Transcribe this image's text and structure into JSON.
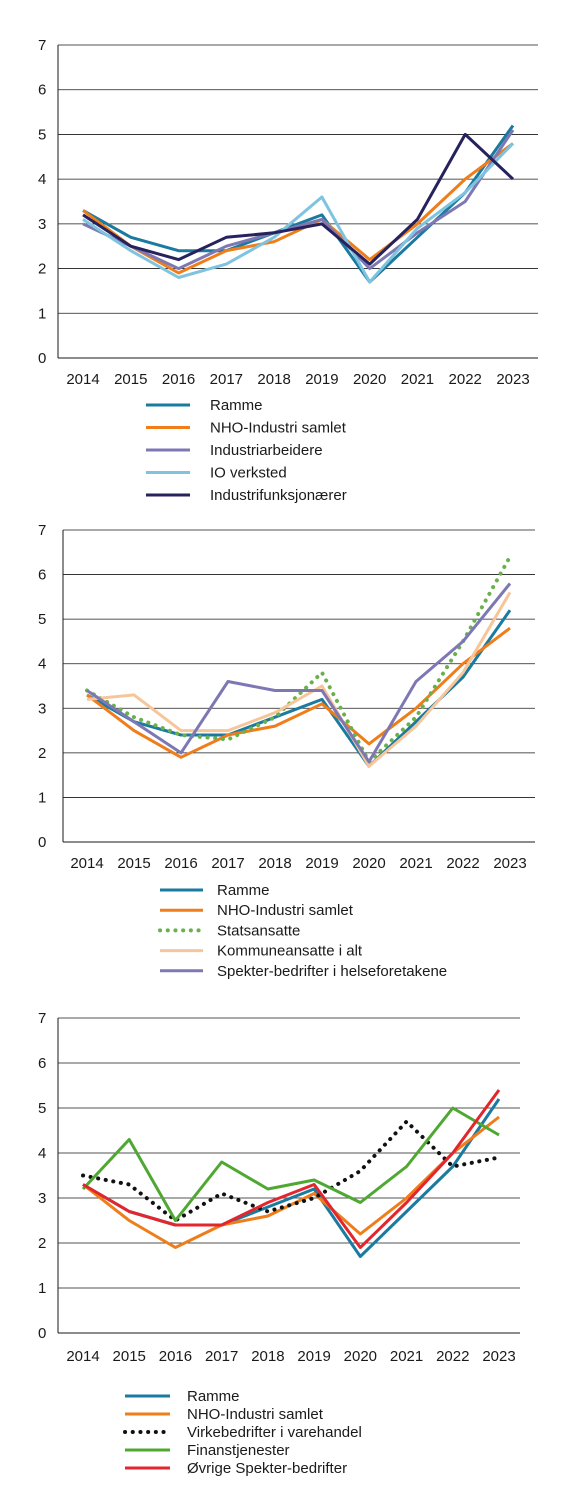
{
  "chart_data": [
    {
      "type": "line",
      "x": [
        "2014",
        "2015",
        "2016",
        "2017",
        "2018",
        "2019",
        "2020",
        "2021",
        "2022",
        "2023"
      ],
      "ylim": [
        0,
        7
      ],
      "yticks": [
        "0",
        "1",
        "2",
        "3",
        "4",
        "5",
        "6",
        "7"
      ],
      "grid": true,
      "legend_position": "bottom",
      "series": [
        {
          "name": "Ramme",
          "color": "#1a7aa0",
          "dash": "solid",
          "values": [
            3.3,
            2.7,
            2.4,
            2.4,
            2.8,
            3.2,
            1.7,
            2.7,
            3.7,
            5.2
          ]
        },
        {
          "name": "NHO-Industri samlet",
          "color": "#ef7d1a",
          "dash": "solid",
          "values": [
            3.3,
            2.5,
            1.9,
            2.4,
            2.6,
            3.1,
            2.2,
            3.0,
            4.0,
            4.8
          ]
        },
        {
          "name": "Industriarbeidere",
          "color": "#7d78b4",
          "dash": "solid",
          "values": [
            3.0,
            2.5,
            2.0,
            2.5,
            2.8,
            3.1,
            2.0,
            2.8,
            3.5,
            5.1
          ]
        },
        {
          "name": "IO verksted",
          "color": "#7ec3e0",
          "dash": "solid",
          "values": [
            3.1,
            2.4,
            1.8,
            2.1,
            2.7,
            3.6,
            1.7,
            2.9,
            3.7,
            4.8
          ]
        },
        {
          "name": "Industrifunksjonærer",
          "color": "#25225e",
          "dash": "solid",
          "values": [
            3.2,
            2.5,
            2.2,
            2.7,
            2.8,
            3.0,
            2.1,
            3.1,
            5.0,
            4.0
          ]
        }
      ]
    },
    {
      "type": "line",
      "x": [
        "2014",
        "2015",
        "2016",
        "2017",
        "2018",
        "2019",
        "2020",
        "2021",
        "2022",
        "2023"
      ],
      "ylim": [
        0,
        7
      ],
      "yticks": [
        "0",
        "1",
        "2",
        "3",
        "4",
        "5",
        "6",
        "7"
      ],
      "grid": true,
      "legend_position": "bottom",
      "series": [
        {
          "name": "Ramme",
          "color": "#1a7aa0",
          "dash": "solid",
          "values": [
            3.3,
            2.7,
            2.4,
            2.4,
            2.8,
            3.2,
            1.7,
            2.7,
            3.7,
            5.2
          ]
        },
        {
          "name": "NHO-Industri samlet",
          "color": "#ef7d1a",
          "dash": "solid",
          "values": [
            3.3,
            2.5,
            1.9,
            2.4,
            2.6,
            3.1,
            2.2,
            3.0,
            4.0,
            4.8
          ]
        },
        {
          "name": "Statsansatte",
          "color": "#6ab04c",
          "dash": "dotted",
          "values": [
            3.4,
            2.8,
            2.4,
            2.3,
            2.8,
            3.8,
            1.8,
            2.8,
            4.5,
            6.4
          ]
        },
        {
          "name": "Kommuneansatte i alt",
          "color": "#f7c59a",
          "dash": "solid",
          "values": [
            3.2,
            3.3,
            2.5,
            2.5,
            2.9,
            3.5,
            1.7,
            2.6,
            3.8,
            5.6
          ]
        },
        {
          "name": "Spekter-bedrifter i helseforetakene",
          "color": "#7d78b4",
          "dash": "solid",
          "values": [
            3.4,
            2.7,
            2.0,
            3.6,
            3.4,
            3.4,
            1.8,
            3.6,
            4.5,
            5.8
          ]
        }
      ]
    },
    {
      "type": "line",
      "x": [
        "2014",
        "2015",
        "2016",
        "2017",
        "2018",
        "2019",
        "2020",
        "2021",
        "2022",
        "2023"
      ],
      "ylim": [
        0,
        7
      ],
      "yticks": [
        "0",
        "1",
        "2",
        "3",
        "4",
        "5",
        "6",
        "7"
      ],
      "grid": true,
      "legend_position": "bottom",
      "series": [
        {
          "name": "Ramme",
          "color": "#1a7aa0",
          "dash": "solid",
          "values": [
            3.3,
            2.7,
            2.4,
            2.4,
            2.8,
            3.2,
            1.7,
            2.7,
            3.7,
            5.2
          ]
        },
        {
          "name": "NHO-Industri samlet",
          "color": "#ef7d1a",
          "dash": "solid",
          "values": [
            3.3,
            2.5,
            1.9,
            2.4,
            2.6,
            3.1,
            2.2,
            3.0,
            4.0,
            4.8
          ]
        },
        {
          "name": "Virkebedrifter i varehandel",
          "color": "#111111",
          "dash": "dotted",
          "values": [
            3.5,
            3.3,
            2.5,
            3.1,
            2.7,
            3.0,
            3.6,
            4.7,
            3.7,
            3.9
          ]
        },
        {
          "name": "Finanstjenester",
          "color": "#4fa832",
          "dash": "solid",
          "values": [
            3.2,
            4.3,
            2.5,
            3.8,
            3.2,
            3.4,
            2.9,
            3.7,
            5.0,
            4.4
          ]
        },
        {
          "name": "Øvrige Spekter-bedrifter",
          "color": "#e3262e",
          "dash": "solid",
          "values": [
            3.3,
            2.7,
            2.4,
            2.4,
            2.9,
            3.3,
            1.9,
            2.9,
            4.0,
            5.4
          ]
        }
      ]
    }
  ]
}
